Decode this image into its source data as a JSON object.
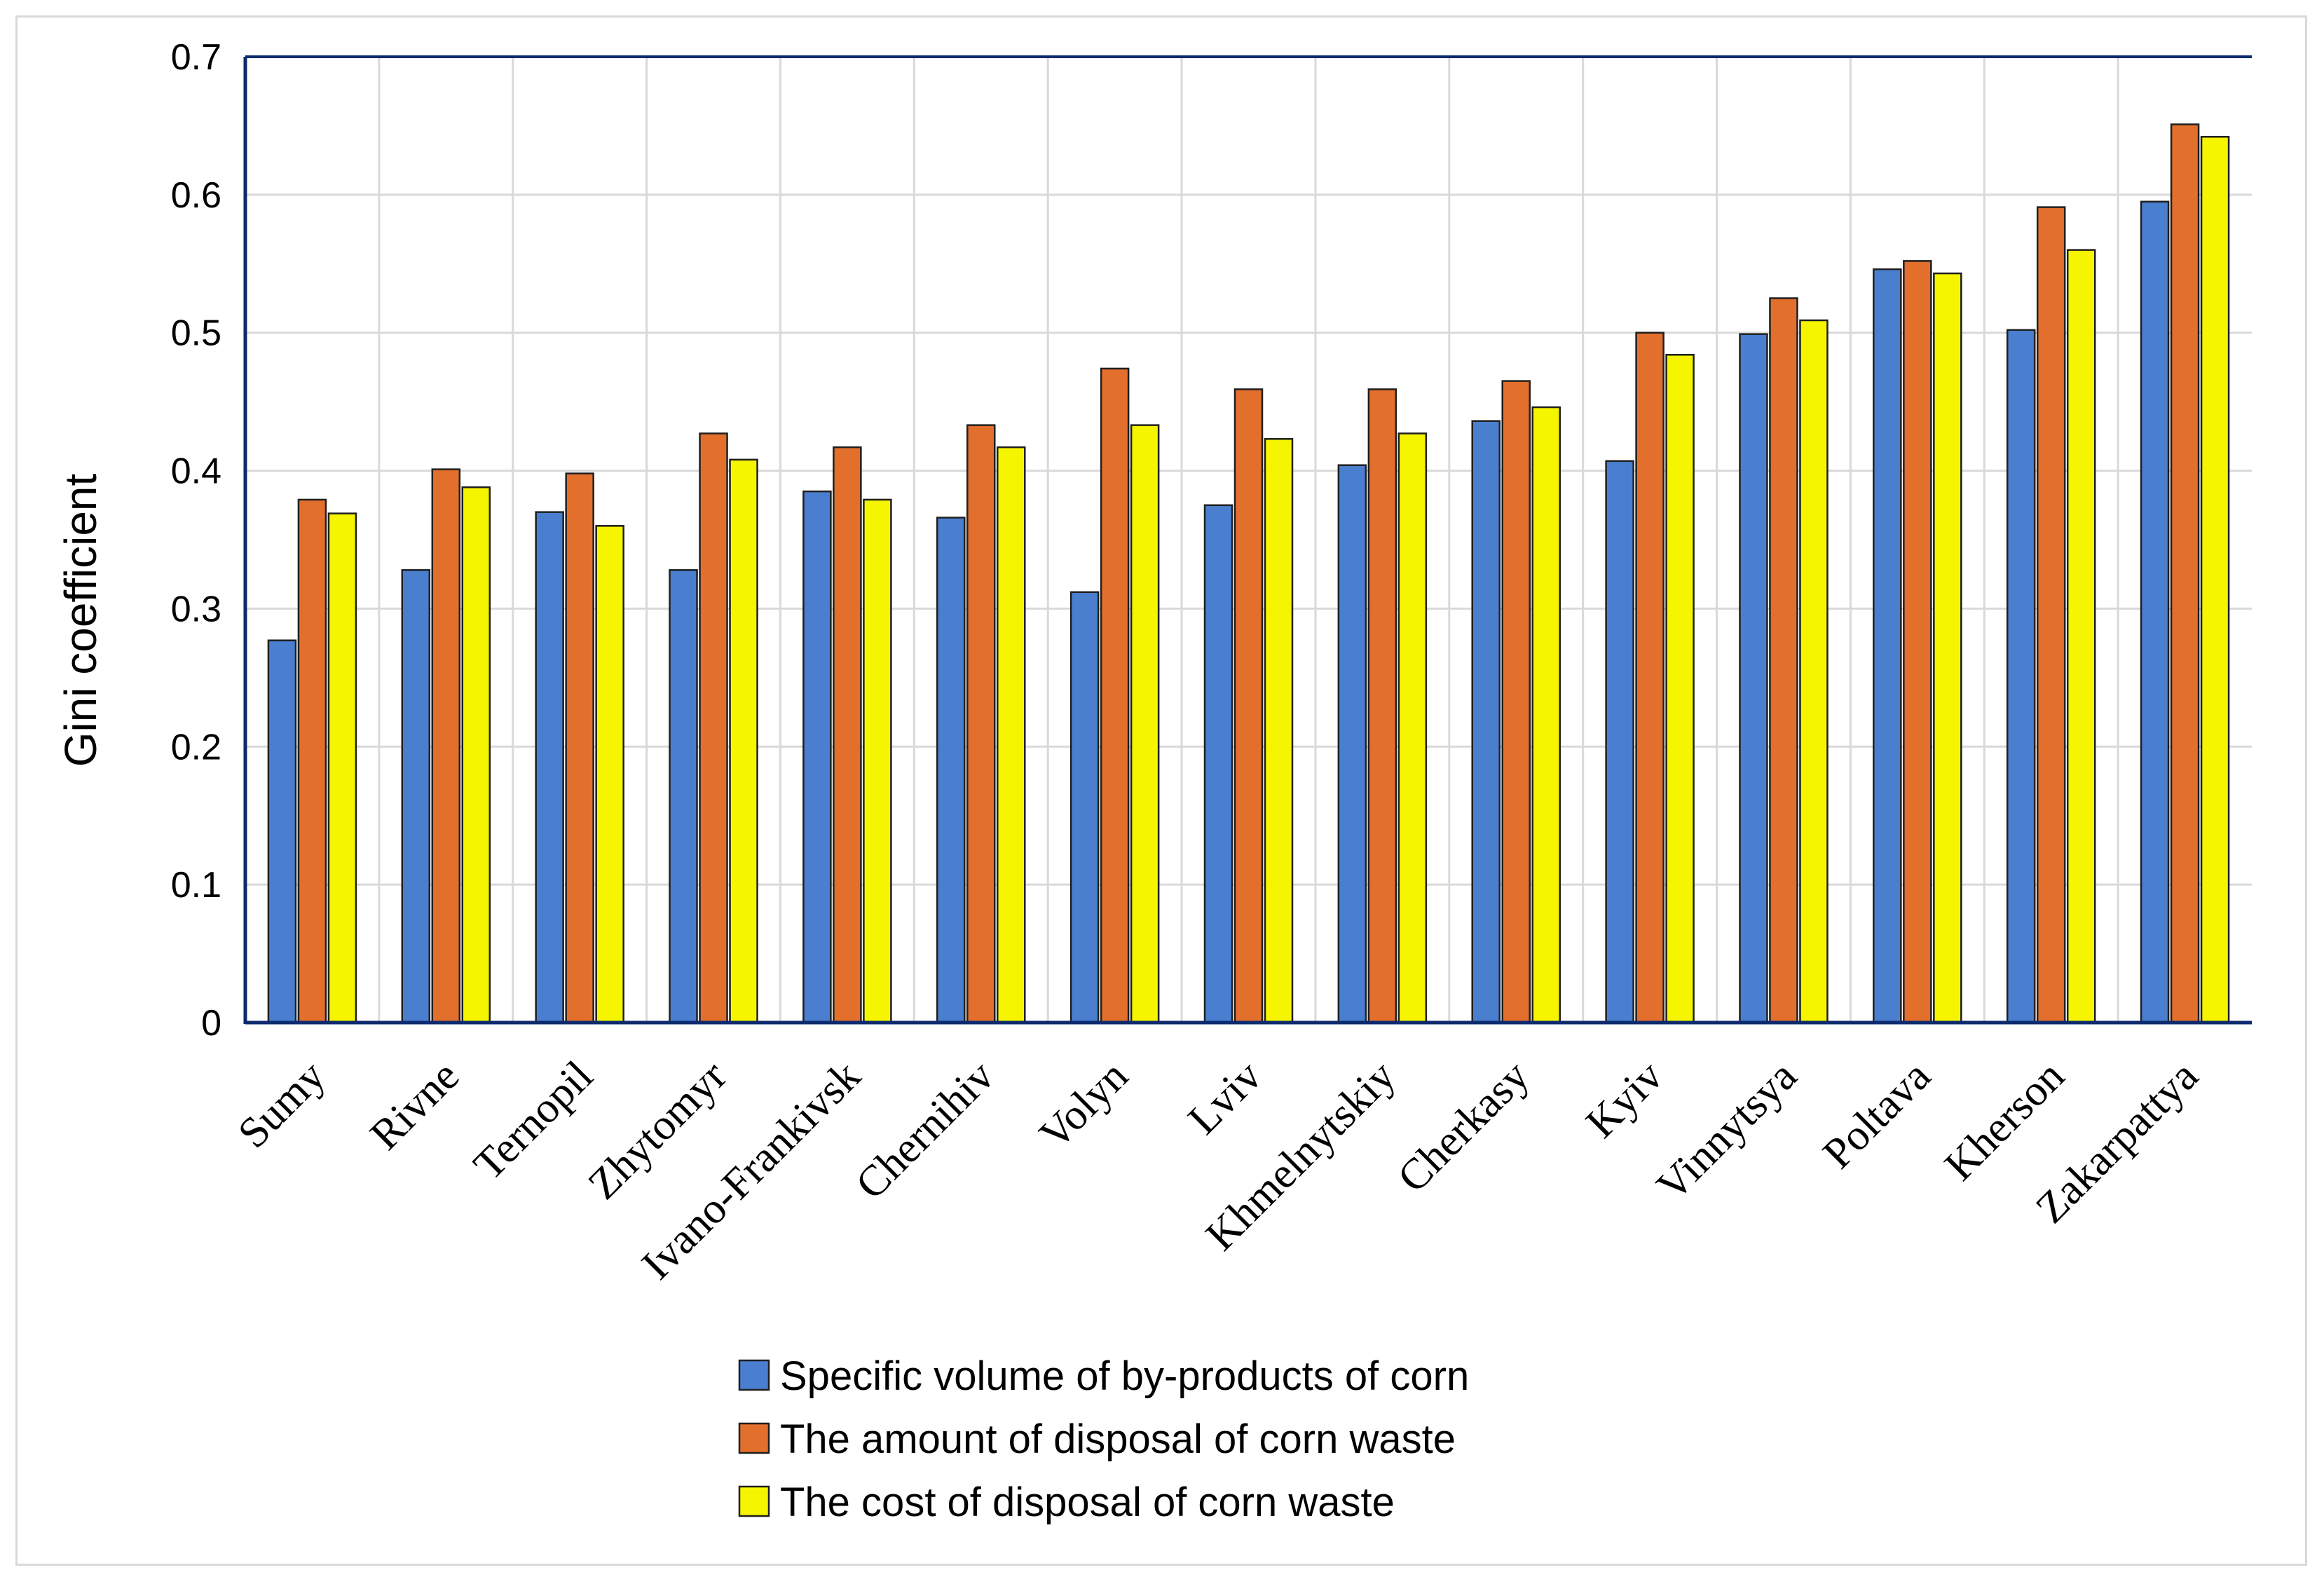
{
  "chart_data": {
    "type": "bar",
    "title": "",
    "xlabel": "",
    "ylabel": "Gini coefficient",
    "ylim": [
      0,
      0.7
    ],
    "yticks": [
      "0",
      "0.1",
      "0.2",
      "0.3",
      "0.4",
      "0.5",
      "0.6",
      "0.7"
    ],
    "grid": true,
    "legend_position": "bottom",
    "categories": [
      "Sumy",
      "Rivne",
      "Ternopil",
      "Zhytomyr",
      "Ivano-Frankivsk",
      "Chernihiv",
      "Volyn",
      "Lviv",
      "Khmelnytskiy",
      "Cherkasy",
      "Kyiv",
      "Vinnytsya",
      "Poltava",
      "Kherson",
      "Zakarpattya"
    ],
    "series": [
      {
        "name": "Specific volume of by-products of corn",
        "color": "#4a7fd0",
        "values": [
          0.277,
          0.328,
          0.37,
          0.328,
          0.385,
          0.366,
          0.312,
          0.375,
          0.404,
          0.436,
          0.407,
          0.499,
          0.546,
          0.502,
          0.595
        ]
      },
      {
        "name": "The amount of disposal of corn waste",
        "color": "#e36f2d",
        "values": [
          0.379,
          0.401,
          0.398,
          0.427,
          0.417,
          0.433,
          0.474,
          0.459,
          0.459,
          0.465,
          0.5,
          0.525,
          0.552,
          0.591,
          0.651
        ]
      },
      {
        "name": "The cost of disposal of corn waste",
        "color": "#f5f500",
        "values": [
          0.369,
          0.388,
          0.36,
          0.408,
          0.379,
          0.417,
          0.433,
          0.423,
          0.427,
          0.446,
          0.484,
          0.509,
          0.543,
          0.56,
          0.642
        ]
      }
    ]
  }
}
